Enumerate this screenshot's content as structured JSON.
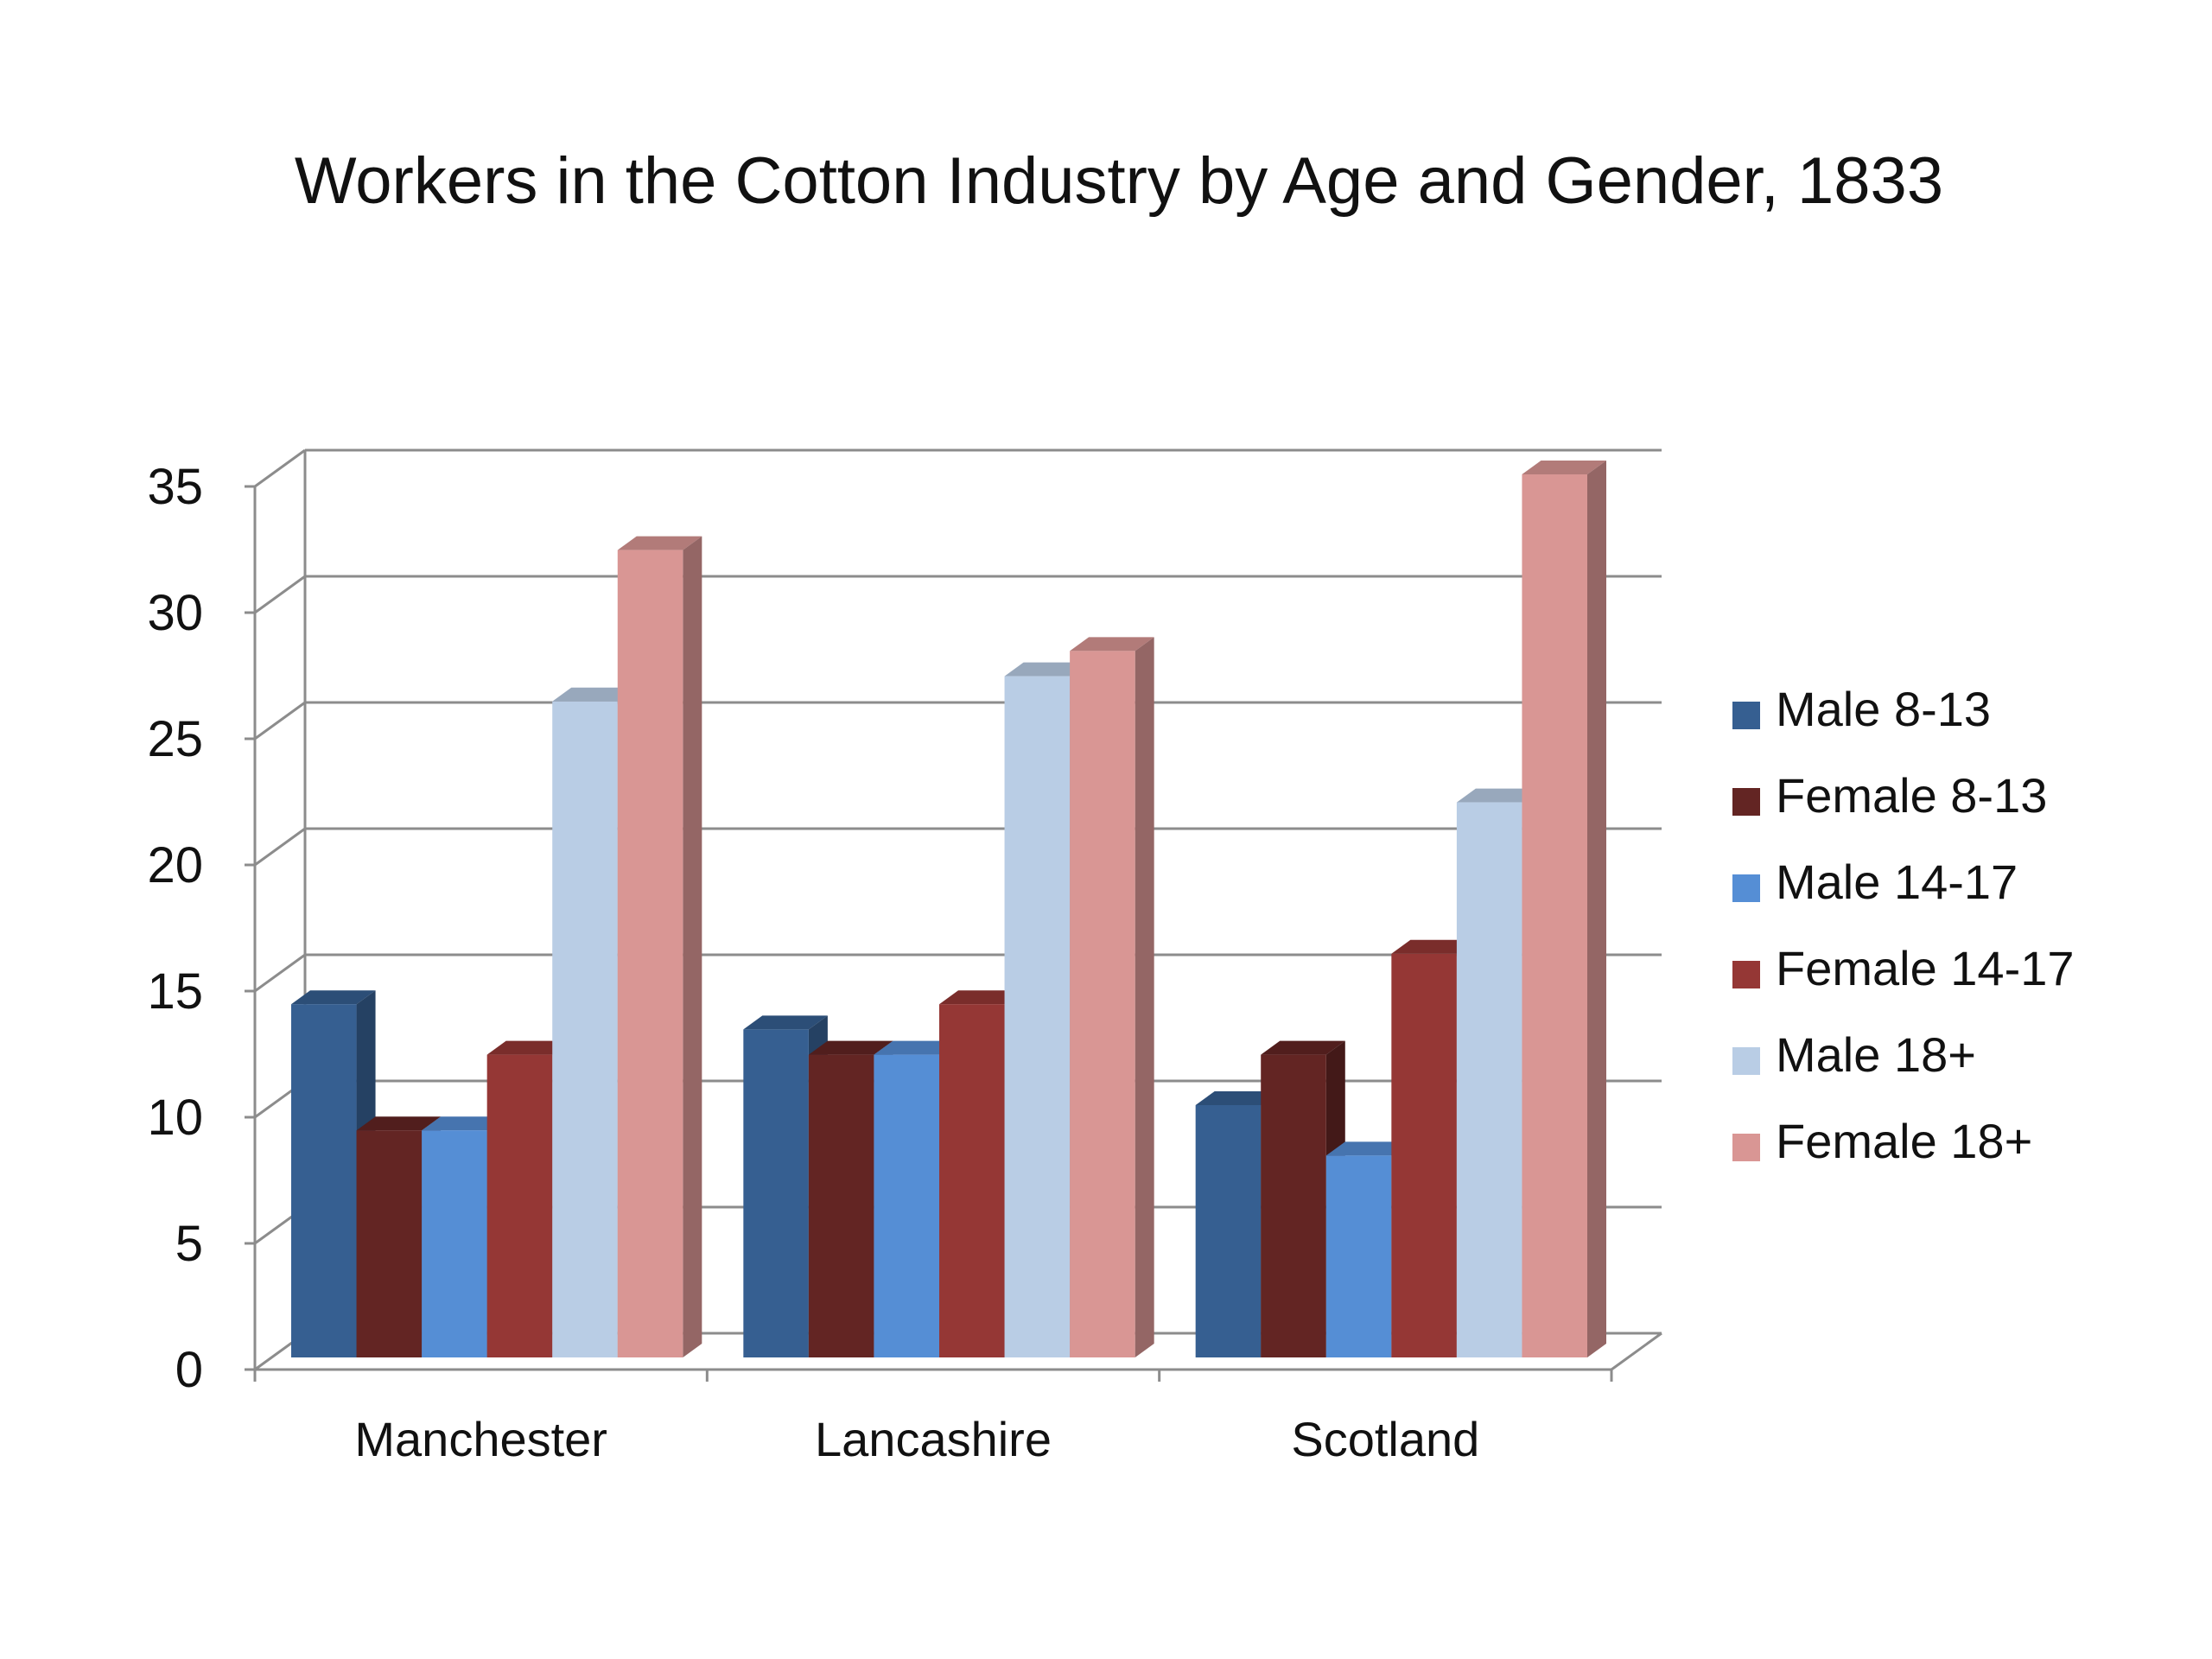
{
  "chart_data": {
    "type": "bar",
    "title": "Workers in the Cotton Industry by Age and Gender, 1833",
    "categories": [
      "Manchester",
      "Lancashire",
      "Scotland"
    ],
    "series": [
      {
        "name": "Male 8-13",
        "values": [
          14,
          13,
          10
        ],
        "color": "#365f91"
      },
      {
        "name": "Female 8-13",
        "values": [
          9,
          12,
          12
        ],
        "color": "#632523"
      },
      {
        "name": "Male 14-17",
        "values": [
          9,
          12,
          8
        ],
        "color": "#558ed5"
      },
      {
        "name": "Female 14-17",
        "values": [
          12,
          14,
          16
        ],
        "color": "#953735"
      },
      {
        "name": "Male 18+",
        "values": [
          26,
          27,
          22
        ],
        "color": "#b9cde5"
      },
      {
        "name": "Female 18+",
        "values": [
          32,
          28,
          35
        ],
        "color": "#d99694"
      }
    ],
    "yticks": [
      "0",
      "5",
      "10",
      "15",
      "20",
      "25",
      "30",
      "35"
    ],
    "ylim": [
      0,
      35
    ],
    "grid": true,
    "legend": "right"
  }
}
